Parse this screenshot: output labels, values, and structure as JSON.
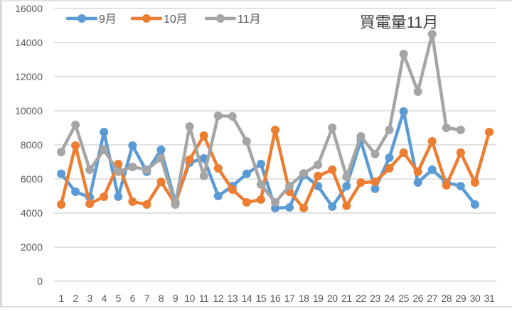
{
  "chart_data": {
    "type": "line",
    "title": "買電量11月",
    "xlabel": "",
    "ylabel": "",
    "ylim": [
      0,
      16000
    ],
    "yticks": [
      0,
      2000,
      4000,
      6000,
      8000,
      10000,
      12000,
      14000,
      16000
    ],
    "grid": true,
    "legend_position": "top-left",
    "categories": [
      "1",
      "2",
      "3",
      "4",
      "5",
      "6",
      "7",
      "8",
      "9",
      "10",
      "11",
      "12",
      "13",
      "14",
      "15",
      "16",
      "17",
      "18",
      "19",
      "20",
      "21",
      "22",
      "23",
      "24",
      "25",
      "26",
      "27",
      "28",
      "29",
      "30",
      "31"
    ],
    "series": [
      {
        "name": "9月",
        "color": "#5b9bd5",
        "values": [
          6300,
          5250,
          4920,
          8750,
          4960,
          7960,
          6420,
          7710,
          4625,
          6960,
          7210,
          5000,
          5580,
          6300,
          6875,
          4290,
          4330,
          6250,
          5580,
          4375,
          5580,
          8250,
          5420,
          7250,
          9960,
          5790,
          6540,
          5790,
          5580,
          4500,
          null
        ]
      },
      {
        "name": "10月",
        "color": "#ed7d31",
        "values": [
          4500,
          7960,
          4540,
          4960,
          6875,
          4670,
          4500,
          5830,
          4540,
          7130,
          8540,
          6625,
          5375,
          4625,
          4790,
          8875,
          5250,
          4290,
          6170,
          6540,
          4420,
          5790,
          5830,
          6625,
          7540,
          6420,
          8210,
          5625,
          7540,
          5790,
          8750
        ]
      },
      {
        "name": "11月",
        "color": "#a5a5a5",
        "values": [
          7580,
          9170,
          6540,
          7710,
          6420,
          6710,
          6540,
          7210,
          4500,
          9080,
          6170,
          9710,
          9670,
          8210,
          5670,
          4625,
          5580,
          6330,
          6830,
          9000,
          6125,
          8500,
          7460,
          8875,
          13330,
          11125,
          14500,
          9000,
          8875,
          null,
          null
        ]
      }
    ]
  },
  "style": {
    "grid_color": "#d9d9d9",
    "axis_text_color": "#595959",
    "title_color": "#404040"
  }
}
